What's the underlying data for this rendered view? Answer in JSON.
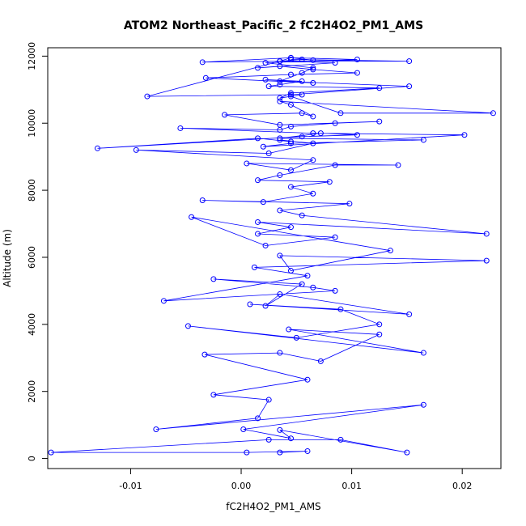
{
  "chart_data": {
    "type": "line",
    "title": "ATOM2 Northeast_Pacific_2 fC2H4O2_PM1_AMS",
    "xlabel": "fC2H4O2_PM1_AMS",
    "ylabel": "Altitude (m)",
    "xlim": [
      -0.0175,
      0.0235
    ],
    "ylim": [
      -300,
      12250
    ],
    "x_ticks": [
      -0.01,
      0.0,
      0.01,
      0.02
    ],
    "x_tick_labels": [
      "-0.01",
      "0.00",
      "0.01",
      "0.02"
    ],
    "y_ticks": [
      0,
      2000,
      4000,
      6000,
      8000,
      10000,
      12000
    ],
    "y_tick_labels": [
      "0",
      "2000",
      "4000",
      "6000",
      "8000",
      "10000",
      "12000"
    ],
    "grid": false,
    "series_color": "#0000ff",
    "marker": "open-circle",
    "series": [
      {
        "x": [
          0.0035,
          0.006,
          0.0005,
          -0.0172,
          0.0025,
          0.009,
          0.015,
          0.0035,
          0.0045,
          0.0002,
          0.0165,
          -0.0077,
          0.0015,
          0.0025,
          -0.0025,
          0.006,
          -0.0033,
          0.0035,
          0.0072,
          0.0125,
          0.0043,
          0.0165,
          -0.0048,
          0.005,
          0.0125,
          0.009,
          0.0008,
          0.0152,
          0.0035,
          0.0022,
          0.0055,
          -0.0025,
          0.0065,
          0.0085,
          -0.007,
          0.006,
          0.0012,
          0.0222,
          0.0035,
          0.0045,
          0.0135,
          -0.0045,
          0.0022,
          0.0085,
          0.0015,
          0.0045,
          0.0015,
          0.0222,
          0.0055,
          0.0035,
          0.0098,
          -0.0035,
          0.002,
          0.0065,
          0.0045,
          0.008,
          0.0015,
          0.0035,
          0.0085,
          0.0142,
          0.0005,
          0.0045,
          0.0065,
          -0.0095,
          0.0025,
          0.0065,
          0.0035,
          0.0045,
          0.0015,
          -0.013,
          0.0055,
          0.0105,
          0.0072,
          0.0035,
          0.0165,
          0.0045,
          0.002,
          0.0202,
          0.0065,
          -0.0055,
          0.0035,
          0.0045,
          0.0085,
          0.0125,
          0.0035,
          -0.0015,
          0.0055,
          0.0065,
          0.0045,
          0.0035,
          0.0228,
          0.009,
          0.0045,
          0.0055,
          0.0035,
          0.0045,
          0.0125,
          0.0025,
          0.0035,
          0.0055,
          0.0022,
          0.0065,
          -0.0032,
          0.0045,
          0.0105,
          0.0065,
          0.0035,
          0.0015,
          0.0085,
          0.0035,
          -0.0085,
          0.0045,
          0.0152,
          0.0035,
          0.0055,
          0.0065,
          0.0022,
          0.0105,
          0.0045,
          0.0035,
          -0.0035,
          0.0045,
          0.0065,
          0.0055,
          0.0035,
          0.0152,
          0.0045
        ],
        "y": [
          180,
          220,
          180,
          180,
          560,
          560,
          180,
          850,
          600,
          870,
          1600,
          870,
          1200,
          1750,
          1900,
          2350,
          3100,
          3150,
          2900,
          3700,
          3850,
          3150,
          3950,
          3600,
          4000,
          4450,
          4600,
          4300,
          4900,
          4550,
          5200,
          5350,
          5100,
          5000,
          4700,
          5450,
          5700,
          5900,
          6050,
          5600,
          6200,
          7200,
          6350,
          6600,
          6700,
          6900,
          7050,
          6700,
          7250,
          7400,
          7600,
          7700,
          7650,
          7900,
          8100,
          8250,
          8300,
          8450,
          8750,
          8750,
          8800,
          8600,
          8900,
          9200,
          9100,
          9400,
          9500,
          9450,
          9550,
          9250,
          9600,
          9650,
          9700,
          9550,
          9500,
          9400,
          9300,
          9650,
          9700,
          9850,
          9800,
          9900,
          10000,
          10050,
          9950,
          10250,
          10300,
          10200,
          10550,
          10650,
          10300,
          10300,
          10800,
          10850,
          10750,
          10900,
          11050,
          11100,
          11150,
          11250,
          11300,
          11200,
          11350,
          11450,
          11500,
          11600,
          11700,
          11650,
          11800,
          11850,
          10800,
          10850,
          11100,
          11250,
          11500,
          11650,
          11800,
          11900,
          11950,
          11850,
          11820,
          11950,
          11880,
          11900,
          11850,
          11850,
          11900
        ]
      }
    ]
  }
}
